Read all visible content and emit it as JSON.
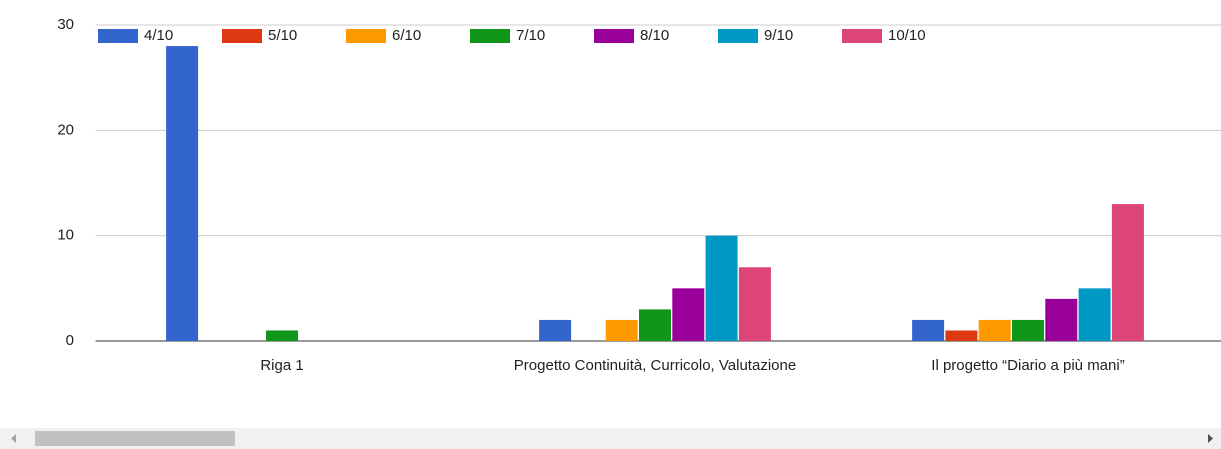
{
  "chart_data": {
    "type": "bar",
    "categories": [
      "Riga 1",
      "Progetto Continuità, Curricolo, Valutazione",
      "Il progetto “Diario a più mani”"
    ],
    "series": [
      {
        "name": "4/10",
        "color": "#3366cc",
        "values": [
          28,
          2,
          2
        ]
      },
      {
        "name": "5/10",
        "color": "#dc3912",
        "values": [
          0,
          0,
          1
        ]
      },
      {
        "name": "6/10",
        "color": "#ff9900",
        "values": [
          0,
          2,
          2
        ]
      },
      {
        "name": "7/10",
        "color": "#109618",
        "values": [
          1,
          3,
          2
        ]
      },
      {
        "name": "8/10",
        "color": "#990099",
        "values": [
          0,
          5,
          4
        ]
      },
      {
        "name": "9/10",
        "color": "#0099c6",
        "values": [
          0,
          10,
          5
        ]
      },
      {
        "name": "10/10",
        "color": "#dd4477",
        "values": [
          0,
          7,
          13
        ]
      }
    ],
    "ylim": [
      0,
      30
    ],
    "yticks": [
      0,
      10,
      20,
      30
    ],
    "grid": true,
    "legend": "top"
  }
}
